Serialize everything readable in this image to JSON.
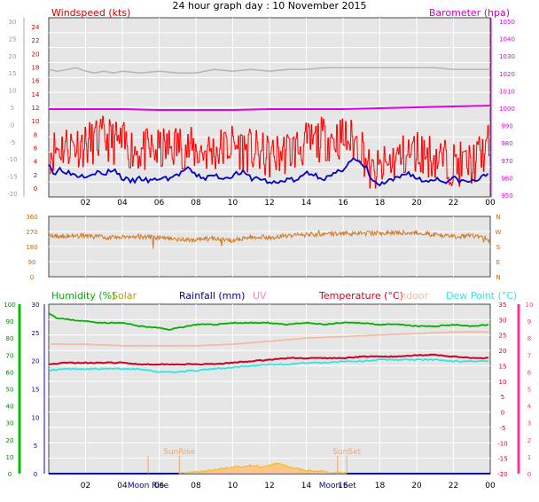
{
  "title": "24 hour graph day : 10 November 2015",
  "colors": {
    "background": "#ffffff",
    "plot_bg": "#e6e6e6",
    "grid": "#ffffff",
    "wind_gust": "#ff0000",
    "wind_avg": "#0000cc",
    "barometer": "#e000e0",
    "barometer_label": "#cc00cc",
    "winddir": "#d27a28",
    "winddir_axis": "#cc6600",
    "humidity": "#00b000",
    "humidity_axis": "#00c000",
    "solar": "#e6c000",
    "solar_label": "#b0a000",
    "rainfall_label": "#000099",
    "uv_label": "#ff80c0",
    "temperature": "#d00020",
    "indoor": "#f4b7a0",
    "dewpoint": "#2ee6e6",
    "temp_axis": "#ff3399",
    "left_axis_grey": "#9a9a9a"
  },
  "chart_data": [
    {
      "id": "wind",
      "type": "line",
      "title": "24 hour graph day : 10 November 2015",
      "series_labels": {
        "left": "Windspeed (kts)",
        "right": "Barometer (hpa)"
      },
      "left_ticks_outer": [
        "30",
        "25",
        "20",
        "15",
        "10",
        "5",
        "0",
        "-5",
        "-10",
        "-15",
        "-20"
      ],
      "left_ticks_inner": [
        "24",
        "22",
        "20",
        "18",
        "16",
        "14",
        "12",
        "10",
        "8",
        "6",
        "4",
        "2",
        "0"
      ],
      "right_ticks": [
        "1050",
        "1040",
        "1030",
        "1020",
        "1010",
        "1000",
        "990",
        "980",
        "970",
        "960",
        "950"
      ],
      "x_ticks": [
        "02",
        "04",
        "06",
        "08",
        "10",
        "12",
        "14",
        "16",
        "18",
        "20",
        "22",
        "00"
      ],
      "xlim": [
        0,
        24
      ],
      "ylim_inner": [
        0,
        25
      ],
      "ylim_right": [
        950,
        1050
      ],
      "gust_seed": 11,
      "series": [
        {
          "name": "Windspeed (kts)",
          "role": "gust",
          "x": [
            0,
            1,
            2,
            3,
            4,
            5,
            6,
            7,
            8,
            9,
            10,
            11,
            12,
            13,
            14,
            15,
            16,
            17,
            17.5,
            18,
            19,
            20,
            21,
            22,
            23,
            24
          ],
          "values": [
            5,
            6,
            6,
            7,
            6,
            5,
            5,
            6,
            5,
            5,
            6,
            5,
            4,
            5,
            6,
            7,
            7,
            6,
            1,
            2,
            4,
            5,
            4,
            3,
            3,
            6
          ]
        },
        {
          "name": "average",
          "role": "avg",
          "x": [
            0,
            0.3,
            0.6,
            1,
            1.5,
            2,
            2.6,
            3,
            3.5,
            4,
            4.5,
            5,
            5.5,
            6,
            6.5,
            7,
            7.5,
            8,
            8.5,
            9,
            9.5,
            10,
            10.5,
            11,
            11.5,
            12,
            12.5,
            13,
            13.5,
            14,
            14.5,
            15,
            15.5,
            16,
            16.3,
            16.6,
            17,
            17.3,
            17.6,
            18,
            18.5,
            19,
            19.5,
            20,
            20.5,
            21,
            21.5,
            22,
            22.5,
            23,
            23.5,
            24
          ],
          "values": [
            4,
            2,
            3,
            2.5,
            2,
            2,
            2.5,
            2,
            3,
            1.5,
            1,
            1.5,
            1,
            1.5,
            1.5,
            2,
            3,
            2,
            1.5,
            2,
            1.5,
            2,
            2.5,
            1.5,
            1.5,
            0.8,
            0.8,
            1.5,
            1,
            2.5,
            2,
            1.5,
            2,
            3,
            4,
            4.5,
            3.5,
            3,
            1,
            0.5,
            1,
            1.5,
            2.5,
            1.5,
            1,
            1.5,
            1,
            1.5,
            1,
            1,
            1.5,
            2.5
          ]
        },
        {
          "name": "Barometer (hpa)",
          "role": "baro",
          "axis": "right",
          "x": [
            0,
            2,
            4,
            6,
            8,
            10,
            12,
            14,
            16,
            18,
            20,
            22,
            24
          ],
          "values": [
            999.5,
            999.5,
            999.5,
            999,
            999,
            999,
            999.5,
            999.5,
            999.5,
            1000,
            1000.5,
            1001,
            1001.5
          ]
        },
        {
          "name": "grey",
          "role": "grey",
          "axis": "outer",
          "x": [
            0,
            0.5,
            1,
            1.5,
            2,
            2.5,
            3,
            3.5,
            4,
            5,
            6,
            7,
            8,
            8.5,
            9,
            10,
            11,
            12,
            13,
            14,
            15,
            16,
            17,
            18,
            19,
            20,
            21,
            22,
            23,
            24
          ],
          "values": [
            16,
            15.5,
            16,
            16.5,
            15.5,
            15,
            15.5,
            15,
            15.5,
            15,
            15.5,
            15,
            15,
            15.5,
            16,
            15.5,
            16,
            15.5,
            16,
            16,
            16.5,
            16.5,
            16.5,
            16.5,
            16.5,
            16.5,
            16.5,
            16,
            16,
            16
          ]
        }
      ]
    },
    {
      "id": "winddir",
      "type": "line",
      "left_ticks": [
        "360",
        "270",
        "180",
        "90",
        "0"
      ],
      "right_ticks": [
        "N",
        "W",
        "S",
        "E",
        "N"
      ],
      "ylim": [
        0,
        360
      ],
      "dir_seed": 5,
      "series": [
        {
          "name": "direction",
          "x": [
            0,
            1,
            2,
            3,
            4,
            5,
            6,
            7,
            8,
            9,
            10,
            11,
            12,
            13,
            14,
            15,
            16,
            17,
            18,
            19,
            20,
            21,
            22,
            23,
            24
          ],
          "values": [
            245,
            240,
            245,
            235,
            240,
            240,
            230,
            225,
            220,
            230,
            215,
            240,
            235,
            245,
            250,
            255,
            258,
            258,
            260,
            262,
            262,
            250,
            238,
            245,
            230
          ]
        }
      ]
    },
    {
      "id": "multi",
      "type": "line",
      "series_labels": {
        "humidity": "Humidity (%)",
        "solar": "Solar",
        "rainfall": "Rainfall (mm)",
        "uv": "UV",
        "temperature": "Temperature (°C)",
        "indoor": "Indoor",
        "dewpoint": "Dew Point (°C)"
      },
      "left_ticks_outer": [
        "100",
        "90",
        "80",
        "70",
        "60",
        "50",
        "40",
        "30",
        "20",
        "10",
        "0"
      ],
      "left_ticks_inner": [
        "30",
        "25",
        "20",
        "15",
        "10",
        "5",
        "0"
      ],
      "right_ticks_temp": [
        "35",
        "30",
        "25",
        "20",
        "15",
        "10",
        "5",
        "0",
        "-5",
        "-10",
        "-15",
        "-20"
      ],
      "right_ticks_uv": [
        "10",
        "9",
        "8",
        "7",
        "6",
        "5",
        "4",
        "3",
        "2",
        "1",
        "0"
      ],
      "x_ticks": [
        "02",
        "04",
        "06",
        "08",
        "10",
        "12",
        "14",
        "16",
        "18",
        "20",
        "22",
        "00"
      ],
      "ylim_temp": [
        -20,
        35
      ],
      "ylim_humidity": [
        0,
        100
      ],
      "annotations": [
        {
          "label": "Moon Rise",
          "x": 5.4
        },
        {
          "label": "SunRise",
          "x": 7.1
        },
        {
          "label": "SunSet",
          "x": 16.2
        },
        {
          "label": "Moon Set",
          "x": 15.7
        }
      ],
      "series": [
        {
          "name": "Humidity (%)",
          "axis": "humidity",
          "x": [
            0,
            0.4,
            1,
            2,
            3,
            4,
            5,
            6,
            6.5,
            7,
            7.5,
            8,
            9,
            10,
            11,
            12,
            13,
            14,
            15,
            16,
            17,
            18,
            19,
            20,
            21,
            22,
            23,
            24
          ],
          "values": [
            95,
            92,
            91,
            90,
            89,
            89,
            87,
            86,
            85,
            86,
            87,
            88,
            88,
            89,
            89,
            89,
            88,
            89,
            88,
            89,
            89,
            88,
            88,
            87,
            87,
            88,
            87,
            88
          ]
        },
        {
          "name": "Indoor",
          "axis": "temp",
          "x": [
            0,
            2,
            4,
            6,
            8,
            10,
            12,
            14,
            16,
            18,
            20,
            22,
            24
          ],
          "values": [
            22,
            22,
            21.5,
            21.5,
            21.5,
            22,
            23,
            24,
            24.5,
            25,
            25.5,
            26,
            26
          ]
        },
        {
          "name": "Temperature (°C)",
          "axis": "temp",
          "x": [
            0,
            1,
            2,
            3,
            4,
            5,
            6,
            7,
            8,
            9,
            10,
            11,
            12,
            13,
            14,
            15,
            16,
            17,
            18,
            19,
            20,
            21,
            22,
            23,
            24
          ],
          "values": [
            15.5,
            16,
            16,
            16,
            16,
            15.5,
            15.5,
            15.5,
            15.5,
            15.5,
            16,
            16.5,
            17,
            17.5,
            17.5,
            17.5,
            17.5,
            18,
            18,
            18,
            18.5,
            18.5,
            18,
            17.5,
            17.5
          ]
        },
        {
          "name": "Dew Point (°C)",
          "axis": "temp",
          "x": [
            0,
            1,
            2,
            3,
            4,
            5,
            6,
            7,
            8,
            9,
            10,
            11,
            12,
            13,
            14,
            15,
            16,
            17,
            18,
            19,
            20,
            21,
            22,
            23,
            24
          ],
          "values": [
            13.5,
            14,
            14,
            14,
            14,
            14,
            13,
            13,
            13.5,
            14,
            14.5,
            15,
            15.5,
            15.5,
            16,
            16,
            16.5,
            16.5,
            17,
            17,
            17,
            17,
            16.5,
            16.5,
            16.5
          ]
        },
        {
          "name": "Solar",
          "axis": "humidity",
          "x": [
            7.1,
            8,
            9,
            10,
            10.5,
            11,
            11.5,
            12,
            12.5,
            13,
            13.5,
            14,
            15,
            16,
            16.2
          ],
          "values": [
            0,
            1,
            2,
            4,
            4,
            5,
            4,
            5,
            6,
            4,
            3,
            2,
            1,
            0.5,
            0
          ]
        }
      ]
    }
  ]
}
